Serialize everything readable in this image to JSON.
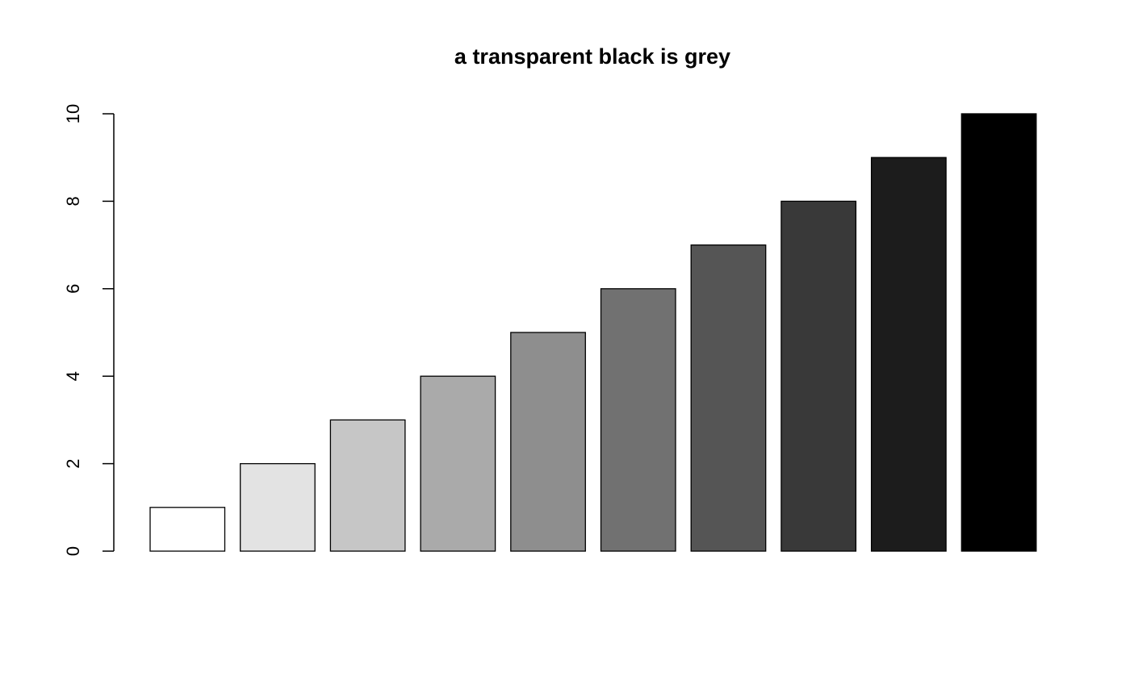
{
  "chart_data": {
    "type": "bar",
    "title": "a transparent black is grey",
    "categories": [
      null,
      null,
      null,
      null,
      null,
      null,
      null,
      null,
      null,
      null
    ],
    "values": [
      1,
      2,
      3,
      4,
      5,
      6,
      7,
      8,
      9,
      10
    ],
    "colors": [
      "#ffffff",
      "#e3e3e3",
      "#c6c6c6",
      "#aaaaaa",
      "#8e8e8e",
      "#717171",
      "#555555",
      "#393939",
      "#1c1c1c",
      "#000000"
    ],
    "ylim": [
      0,
      10
    ],
    "yticks": [
      0,
      2,
      4,
      6,
      8,
      10
    ],
    "grid": false
  }
}
